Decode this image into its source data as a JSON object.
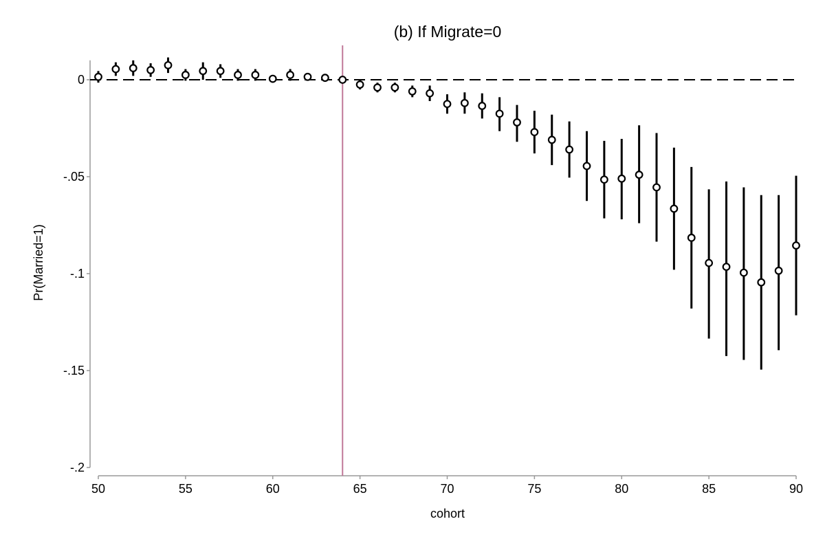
{
  "chart_data": {
    "type": "scatter",
    "title": "(b) If Migrate=0",
    "xlabel": "cohort",
    "ylabel": "Pr(Married=1)",
    "xlim": [
      50,
      90
    ],
    "ylim": [
      -0.2,
      0.01
    ],
    "xticks": [
      50,
      55,
      60,
      65,
      70,
      75,
      80,
      85,
      90
    ],
    "xtick_labels": [
      "50",
      "55",
      "60",
      "65",
      "70",
      "75",
      "80",
      "85",
      "90"
    ],
    "yticks": [
      0,
      -0.05,
      -0.1,
      -0.15,
      -0.2
    ],
    "ytick_labels": [
      "0",
      "-.05",
      "-.1",
      "-.15",
      "-.2"
    ],
    "reference_line_y": 0,
    "reference_line_x": 64,
    "grid": false,
    "legend": "none",
    "colors": {
      "marker": "#000000",
      "error_bar": "#000000",
      "reference_vertical": "#c07898",
      "reference_horizontal": "#000000",
      "axis": "#999999"
    },
    "series": [
      {
        "points": [
          {
            "x": 50,
            "y": 0.0015,
            "lo": -0.0015,
            "hi": 0.0045
          },
          {
            "x": 51,
            "y": 0.0055,
            "lo": 0.002,
            "hi": 0.009
          },
          {
            "x": 52,
            "y": 0.006,
            "lo": 0.002,
            "hi": 0.01
          },
          {
            "x": 53,
            "y": 0.005,
            "lo": 0.0015,
            "hi": 0.0085
          },
          {
            "x": 54,
            "y": 0.0075,
            "lo": 0.0035,
            "hi": 0.0115
          },
          {
            "x": 55,
            "y": 0.0025,
            "lo": -0.0005,
            "hi": 0.0055
          },
          {
            "x": 56,
            "y": 0.0045,
            "lo": 0.0,
            "hi": 0.009
          },
          {
            "x": 57,
            "y": 0.0045,
            "lo": 0.001,
            "hi": 0.008
          },
          {
            "x": 58,
            "y": 0.0025,
            "lo": -0.0005,
            "hi": 0.0055
          },
          {
            "x": 59,
            "y": 0.0025,
            "lo": -0.0005,
            "hi": 0.0055
          },
          {
            "x": 60,
            "y": 0.0005,
            "lo": -0.0015,
            "hi": 0.0025
          },
          {
            "x": 61,
            "y": 0.0025,
            "lo": -0.0005,
            "hi": 0.0055
          },
          {
            "x": 62,
            "y": 0.0015,
            "lo": -0.0005,
            "hi": 0.0035
          },
          {
            "x": 63,
            "y": 0.001,
            "lo": -0.0005,
            "hi": 0.0025
          },
          {
            "x": 64,
            "y": 0.0,
            "lo": 0.0,
            "hi": 0.0
          },
          {
            "x": 65,
            "y": -0.0025,
            "lo": -0.005,
            "hi": 0.0
          },
          {
            "x": 66,
            "y": -0.004,
            "lo": -0.0065,
            "hi": -0.0015
          },
          {
            "x": 67,
            "y": -0.004,
            "lo": -0.0065,
            "hi": -0.0015
          },
          {
            "x": 68,
            "y": -0.006,
            "lo": -0.009,
            "hi": -0.003
          },
          {
            "x": 69,
            "y": -0.007,
            "lo": -0.011,
            "hi": -0.003
          },
          {
            "x": 70,
            "y": -0.0125,
            "lo": -0.0175,
            "hi": -0.0075
          },
          {
            "x": 71,
            "y": -0.012,
            "lo": -0.0175,
            "hi": -0.0065
          },
          {
            "x": 72,
            "y": -0.0135,
            "lo": -0.02,
            "hi": -0.007
          },
          {
            "x": 73,
            "y": -0.0175,
            "lo": -0.0265,
            "hi": -0.009
          },
          {
            "x": 74,
            "y": -0.022,
            "lo": -0.032,
            "hi": -0.013
          },
          {
            "x": 75,
            "y": -0.027,
            "lo": -0.038,
            "hi": -0.016
          },
          {
            "x": 76,
            "y": -0.031,
            "lo": -0.044,
            "hi": -0.018
          },
          {
            "x": 77,
            "y": -0.036,
            "lo": -0.0505,
            "hi": -0.0215
          },
          {
            "x": 78,
            "y": -0.0445,
            "lo": -0.0625,
            "hi": -0.0265
          },
          {
            "x": 79,
            "y": -0.0515,
            "lo": -0.0715,
            "hi": -0.0315
          },
          {
            "x": 80,
            "y": -0.051,
            "lo": -0.072,
            "hi": -0.0305
          },
          {
            "x": 81,
            "y": -0.049,
            "lo": -0.074,
            "hi": -0.0235
          },
          {
            "x": 82,
            "y": -0.0555,
            "lo": -0.0835,
            "hi": -0.0275
          },
          {
            "x": 83,
            "y": -0.0665,
            "lo": -0.098,
            "hi": -0.035
          },
          {
            "x": 84,
            "y": -0.0815,
            "lo": -0.118,
            "hi": -0.045
          },
          {
            "x": 85,
            "y": -0.0945,
            "lo": -0.1335,
            "hi": -0.0565
          },
          {
            "x": 86,
            "y": -0.0965,
            "lo": -0.1425,
            "hi": -0.0525
          },
          {
            "x": 87,
            "y": -0.0995,
            "lo": -0.1445,
            "hi": -0.0555
          },
          {
            "x": 88,
            "y": -0.1045,
            "lo": -0.1495,
            "hi": -0.0595
          },
          {
            "x": 89,
            "y": -0.0985,
            "lo": -0.1395,
            "hi": -0.0595
          },
          {
            "x": 90,
            "y": -0.0855,
            "lo": -0.1215,
            "hi": -0.0495
          }
        ]
      }
    ]
  }
}
